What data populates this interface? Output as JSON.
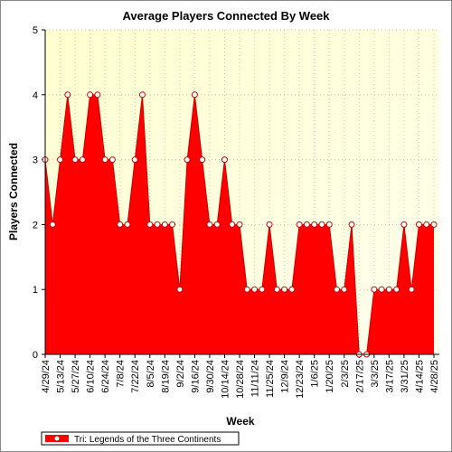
{
  "chart_data": {
    "type": "area",
    "title": "Average Players Connected By Week",
    "x_label": "Week",
    "y_label": "Players Connected",
    "categories": [
      "4/29/24",
      null,
      "5/13/24",
      null,
      "5/27/24",
      null,
      "6/10/24",
      null,
      "6/24/24",
      null,
      "7/8/24",
      null,
      "7/22/24",
      null,
      "8/5/24",
      null,
      "8/19/24",
      null,
      "9/2/24",
      null,
      "9/16/24",
      null,
      "9/30/24",
      null,
      "10/14/24",
      null,
      "10/28/24",
      null,
      "11/11/24",
      null,
      "11/25/24",
      null,
      "12/9/24",
      null,
      "12/23/24",
      null,
      "1/6/25",
      null,
      "1/20/25",
      null,
      "2/3/25",
      null,
      "2/17/25",
      null,
      "3/3/25",
      null,
      "3/17/25",
      null,
      "3/31/25",
      null,
      "4/14/25",
      null,
      "4/28/25"
    ],
    "series": [
      {
        "name": "Tri: Legends of the Three Continents",
        "color": "#ff0000",
        "values": [
          3,
          2,
          3,
          4,
          3,
          3,
          4,
          4,
          3,
          3,
          2,
          2,
          3,
          4,
          2,
          2,
          2,
          2,
          1,
          3,
          4,
          3,
          2,
          2,
          3,
          2,
          2,
          1,
          1,
          1,
          2,
          1,
          1,
          1,
          2,
          2,
          2,
          2,
          2,
          1,
          1,
          2,
          0,
          0,
          1,
          1,
          1,
          1,
          2,
          1,
          2,
          2,
          2
        ]
      }
    ],
    "ylim": [
      0,
      5
    ],
    "yticks": [
      0,
      1,
      2,
      3,
      4,
      5
    ],
    "grid": true,
    "legend": "bottom-left"
  }
}
